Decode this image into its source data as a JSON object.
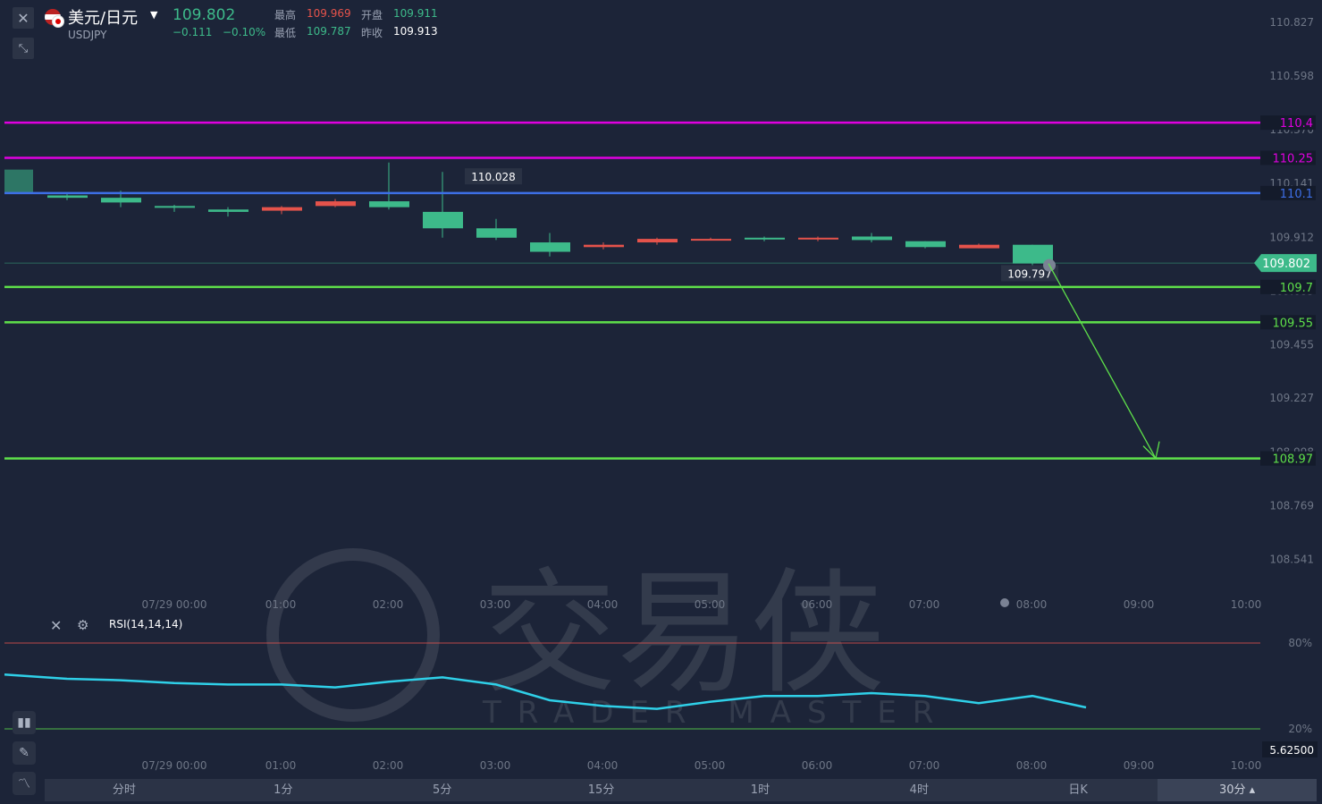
{
  "header": {
    "title": "美元/日元",
    "symbol": "USDJPY",
    "price": "109.802",
    "change": "−0.111",
    "change_pct": "−0.10%",
    "high_label": "最高",
    "high": "109.969",
    "open_label": "开盘",
    "open": "109.911",
    "low_label": "最低",
    "low": "109.787",
    "prev_label": "昨收",
    "prev": "109.913"
  },
  "watermark": {
    "cn": "交易侠",
    "en": "TRADER MASTER"
  },
  "colors": {
    "bg": "#1c2438",
    "up": "#3dba8a",
    "down": "#e5534b",
    "magenta": "#e000e0",
    "blue": "#3d6fe6",
    "green": "#5ee04a",
    "rsi": "#2fd0e8",
    "grid_text": "#6e7686"
  },
  "chart_data": {
    "type": "candlestick",
    "price_axis": {
      "ticks": [
        "110.827",
        "110.598",
        "110.370",
        "110.141",
        "109.912",
        "109.683",
        "109.455",
        "109.227",
        "108.998",
        "108.769",
        "108.541"
      ],
      "range": [
        108.43,
        110.92
      ]
    },
    "time_axis": {
      "ticks": [
        "07/29 00:00",
        "01:00",
        "02:00",
        "03:00",
        "04:00",
        "05:00",
        "06:00",
        "07:00",
        "08:00",
        "09:00",
        "10:00"
      ]
    },
    "candles": [
      {
        "o": 110.08,
        "h": 110.1,
        "l": 110.07,
        "c": 110.09
      },
      {
        "o": 110.06,
        "h": 110.11,
        "l": 110.04,
        "c": 110.08
      },
      {
        "o": 110.04,
        "h": 110.05,
        "l": 110.02,
        "c": 110.045
      },
      {
        "o": 110.02,
        "h": 110.04,
        "l": 110.0,
        "c": 110.03
      },
      {
        "o": 110.04,
        "h": 110.045,
        "l": 110.01,
        "c": 110.025
      },
      {
        "o": 110.065,
        "h": 110.075,
        "l": 110.04,
        "c": 110.045
      },
      {
        "o": 110.04,
        "h": 110.23,
        "l": 110.03,
        "c": 110.065
      },
      {
        "o": 109.95,
        "h": 110.19,
        "l": 109.91,
        "c": 110.02
      },
      {
        "o": 109.91,
        "h": 109.99,
        "l": 109.9,
        "c": 109.95
      },
      {
        "o": 109.85,
        "h": 109.93,
        "l": 109.83,
        "c": 109.89
      },
      {
        "o": 109.88,
        "h": 109.89,
        "l": 109.86,
        "c": 109.87
      },
      {
        "o": 109.905,
        "h": 109.91,
        "l": 109.88,
        "c": 109.89
      },
      {
        "o": 109.905,
        "h": 109.91,
        "l": 109.9,
        "c": 109.9
      },
      {
        "o": 109.905,
        "h": 109.915,
        "l": 109.895,
        "c": 109.91
      },
      {
        "o": 109.91,
        "h": 109.915,
        "l": 109.895,
        "c": 109.905
      },
      {
        "o": 109.9,
        "h": 109.93,
        "l": 109.89,
        "c": 109.915
      },
      {
        "o": 109.87,
        "h": 109.895,
        "l": 109.865,
        "c": 109.895
      },
      {
        "o": 109.88,
        "h": 109.885,
        "l": 109.865,
        "c": 109.865
      },
      {
        "o": 109.8,
        "h": 109.88,
        "l": 109.79,
        "c": 109.88
      }
    ],
    "last_price": "109.802",
    "horizontal_lines": [
      {
        "value": "110.4",
        "color": "#e000e0"
      },
      {
        "value": "110.25",
        "color": "#e000e0"
      },
      {
        "value": "110.1",
        "color": "#3d6fe6"
      },
      {
        "value": "109.7",
        "color": "#5ee04a"
      },
      {
        "value": "109.55",
        "color": "#5ee04a"
      },
      {
        "value": "108.97",
        "color": "#5ee04a"
      }
    ],
    "annotations": {
      "high_marker": "110.028",
      "low_marker": "109.797"
    },
    "arrow": {
      "from": [
        18.3,
        109.8
      ],
      "to": [
        20.3,
        108.97
      ]
    },
    "rsi": {
      "label": "RSI(14,14,14)",
      "levels": [
        "80%",
        "20%"
      ],
      "values": [
        58,
        55,
        54,
        52,
        51,
        51,
        49,
        53,
        56,
        51,
        40,
        36,
        34,
        39,
        43,
        43,
        45,
        43,
        38,
        43,
        35
      ],
      "axis_value": "5.62500"
    }
  },
  "tabs": [
    "分时",
    "1分",
    "5分",
    "15分",
    "1时",
    "4时",
    "日K",
    "30分"
  ]
}
